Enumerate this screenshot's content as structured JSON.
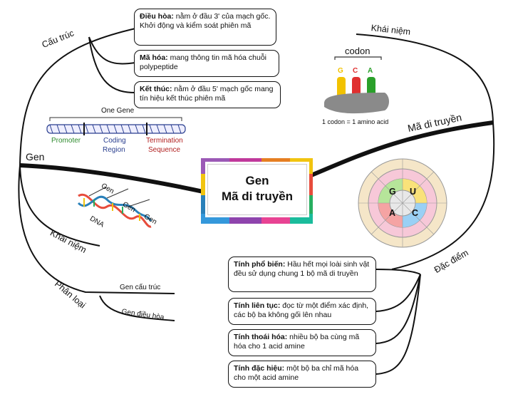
{
  "center": {
    "line1": "Gen",
    "line2": "Mã di truyền"
  },
  "branches": {
    "gen": "Gen",
    "cau_truc": "Cấu trúc",
    "khai_niem_gen": "Khái niệm",
    "phan_loai": "Phân loại",
    "ma_di_truyen": "Mã di truyền",
    "khai_niem_ma": "Khái niệm",
    "dac_diem": "Đặc điểm"
  },
  "structure_boxes": [
    {
      "title": "Điều hòa:",
      "text": " nằm ở đầu 3' của mạch gốc.",
      "text2": "Khởi động và kiểm soát phiên mã"
    },
    {
      "title": "Mã hóa:",
      "text": " mang thông tin mã hóa chuỗi polypeptide"
    },
    {
      "title": "Kết thúc:",
      "text": " nằm ở đầu 5' mạch gốc mang tín hiệu kết thúc phiên mã"
    }
  ],
  "gene_diagram": {
    "header": "One Gene",
    "promoter": "Promoter",
    "coding_1": "Coding",
    "coding_2": "Region",
    "termination_1": "Termination",
    "termination_2": "Sequence"
  },
  "dna_diagram": {
    "gen1": "Gen",
    "gen2": "Gen",
    "gen3": "Gen",
    "dna": "DNA"
  },
  "classification": {
    "item1": "Gen cấu trúc",
    "item2": "Gen điều hòa"
  },
  "codon_diagram": {
    "title": "codon",
    "b1": "G",
    "b2": "C",
    "b3": "A",
    "caption": "1 codon = 1 amino acid"
  },
  "codon_wheel_inner": [
    "U",
    "C",
    "A",
    "G"
  ],
  "feature_boxes": [
    {
      "title": "Tính phổ biến:",
      "text": " Hầu hết mọi loài sinh vật đều sử dụng chung 1 bộ mã di truyền"
    },
    {
      "title": "Tính liên tục:",
      "text": " đọc từ một điểm xác định, các bộ ba không gối lên nhau"
    },
    {
      "title": "Tính thoái hóa:",
      "text": " nhiều bộ ba cùng mã hóa cho 1 acid amine"
    },
    {
      "title": "Tính đặc hiệu:",
      "text": " một bộ ba chỉ mã hóa cho một acid amine"
    }
  ],
  "colors": {
    "promoter": "#2e8b2e",
    "coding": "#2a3f8f",
    "termination": "#b22222",
    "g_base": "#f2c200",
    "c_base": "#e03030",
    "a_base": "#2aa02a"
  }
}
